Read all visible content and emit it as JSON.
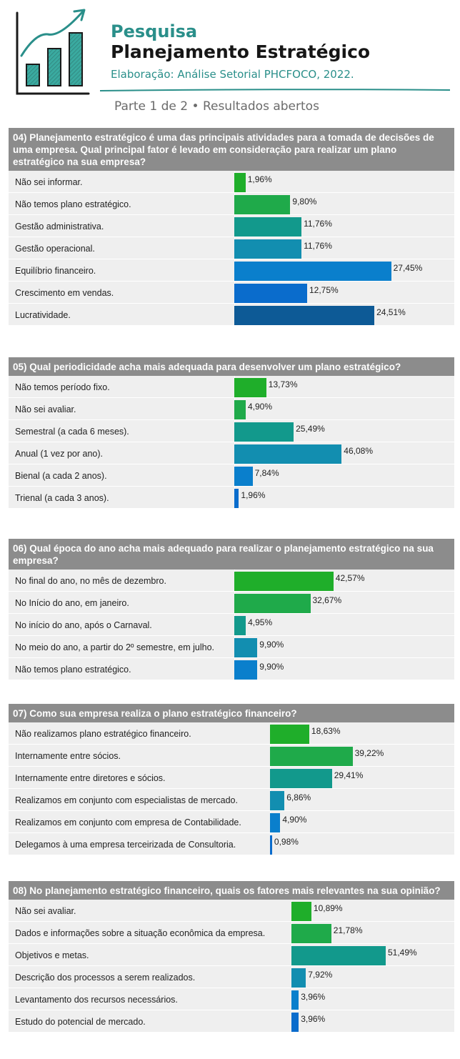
{
  "header": {
    "title_small": "Pesquisa",
    "title_big": "Planejamento Estratégico",
    "subtitle": "Elaboração: Análise Setorial PHCFOCO, 2022.",
    "part_label": "Parte 1 de 2 • Resultados abertos",
    "logo_icon": "growth-chart-icon",
    "accent_color": "#2a8f8a"
  },
  "chart_data": [
    {
      "type": "bar",
      "orientation": "horizontal",
      "title": "04) Planejamento estratégico é uma das principais atividades para a tomada de decisões de uma empresa. Qual principal fator é levado em consideração para realizar um plano estratégico na sua empresa?",
      "categories": [
        "Não sei informar.",
        "Não temos plano estratégico.",
        "Gestão administrativa.",
        "Gestão operacional.",
        "Equilíbrio financeiro.",
        "Crescimento em vendas.",
        "Lucratividade."
      ],
      "values": [
        1.96,
        9.8,
        11.76,
        11.76,
        27.45,
        12.75,
        24.51
      ],
      "labels": [
        "1,96%",
        "9,80%",
        "11,76%",
        "11,76%",
        "27,45%",
        "12,75%",
        "24,51%"
      ],
      "colors": [
        "#1fae2a",
        "#1faa4a",
        "#12998c",
        "#128eb0",
        "#0a7fcc",
        "#0a6ccc",
        "#0d5a96"
      ],
      "xlim": [
        0,
        55
      ]
    },
    {
      "type": "bar",
      "orientation": "horizontal",
      "title": "05) Qual periodicidade acha mais adequada para desenvolver um plano estratégico?",
      "categories": [
        "Não temos período fixo.",
        "Não sei avaliar.",
        "Semestral (a cada 6 meses).",
        "Anual (1 vez por ano).",
        "Bienal (a cada 2 anos).",
        "Trienal (a cada 3 anos)."
      ],
      "values": [
        13.73,
        4.9,
        25.49,
        46.08,
        7.84,
        1.96
      ],
      "labels": [
        "13,73%",
        "4,90%",
        "25,49%",
        "46,08%",
        "7,84%",
        "1,96%"
      ],
      "colors": [
        "#1fae2a",
        "#1faa4a",
        "#12998c",
        "#128eb0",
        "#0a7fcc",
        "#0a6ccc"
      ],
      "xlim": [
        0,
        92
      ]
    },
    {
      "type": "bar",
      "orientation": "horizontal",
      "title": "06) Qual época do ano acha mais adequado para realizar o planejamento estratégico na sua empresa?",
      "categories": [
        "No final do ano, no mês de dezembro.",
        "No Início do ano, em janeiro.",
        "No início do ano, após o Carnaval.",
        "No meio do ano, a partir do 2º semestre, em julho.",
        "Não temos plano estratégico."
      ],
      "values": [
        42.57,
        32.67,
        4.95,
        9.9,
        9.9
      ],
      "labels": [
        "42,57%",
        "32,67%",
        "4,95%",
        "9,90%",
        "9,90%"
      ],
      "colors": [
        "#1fae2a",
        "#1faa4a",
        "#12998c",
        "#128eb0",
        "#0a7fcc"
      ],
      "xlim": [
        0,
        92
      ]
    },
    {
      "type": "bar",
      "orientation": "horizontal",
      "title": "07) Como sua empresa realiza o plano estratégico financeiro?",
      "categories": [
        "Não realizamos plano estratégico financeiro.",
        "Internamente entre sócios.",
        "Internamente entre diretores e sócios.",
        "Realizamos em conjunto com especialistas de mercado.",
        "Realizamos em conjunto com empresa de Contabilidade.",
        "Delegamos à uma empresa terceirizada de Consultoria."
      ],
      "values": [
        18.63,
        39.22,
        29.41,
        6.86,
        4.9,
        0.98
      ],
      "labels": [
        "18,63%",
        "39,22%",
        "29,41%",
        "6,86%",
        "4,90%",
        "0,98%"
      ],
      "colors": [
        "#1fae2a",
        "#1faa4a",
        "#12998c",
        "#128eb0",
        "#0a7fcc",
        "#0a6ccc"
      ],
      "xlim": [
        0,
        78
      ]
    },
    {
      "type": "bar",
      "orientation": "horizontal",
      "title": "08) No planejamento estratégico financeiro, quais os fatores mais relevantes na sua opinião?",
      "categories": [
        "Não sei avaliar.",
        "Dados e informações sobre a situação econômica da empresa.",
        "Objetivos e metas.",
        "Descrição dos processos a serem realizados.",
        "Levantamento dos recursos necessários.",
        "Estudo do potencial de mercado."
      ],
      "values": [
        10.89,
        21.78,
        51.49,
        7.92,
        3.96,
        3.96
      ],
      "labels": [
        "10,89%",
        "21,78%",
        "51,49%",
        "7,92%",
        "3,96%",
        "3,96%"
      ],
      "colors": [
        "#1fae2a",
        "#1faa4a",
        "#12998c",
        "#128eb0",
        "#0a7fcc",
        "#0a6ccc"
      ],
      "xlim": [
        0,
        78
      ]
    }
  ]
}
